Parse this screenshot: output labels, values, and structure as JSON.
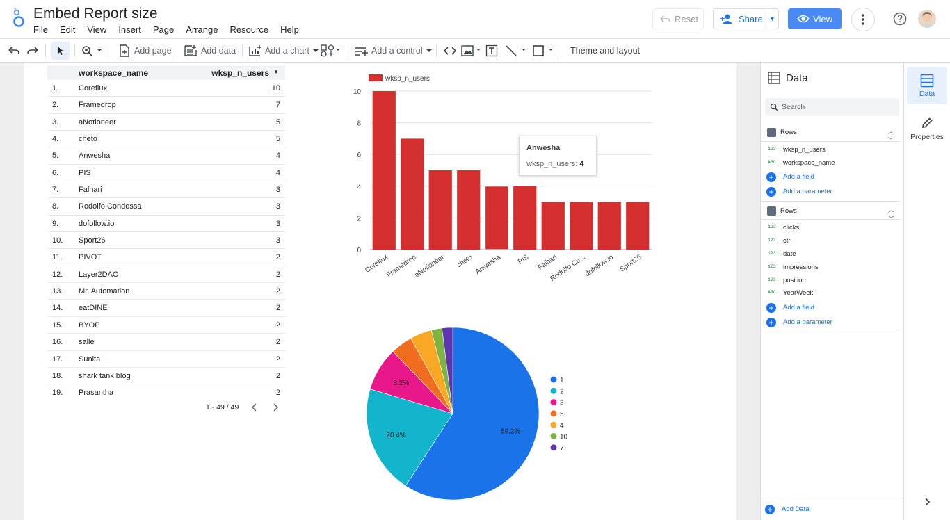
{
  "header": {
    "title": "Embed Report size",
    "menu": [
      "File",
      "Edit",
      "View",
      "Insert",
      "Page",
      "Arrange",
      "Resource",
      "Help"
    ],
    "reset_label": "Reset",
    "share_label": "Share",
    "view_label": "View"
  },
  "toolbar": {
    "add_page": "Add page",
    "add_data": "Add data",
    "add_chart": "Add a chart",
    "add_control": "Add a control",
    "theme_layout": "Theme and layout"
  },
  "table": {
    "columns": [
      "workspace_name",
      "wksp_n_users"
    ],
    "rows": [
      [
        "1.",
        "Coreflux",
        "10"
      ],
      [
        "2.",
        "Framedrop",
        "7"
      ],
      [
        "3.",
        "aNotioneer",
        "5"
      ],
      [
        "4.",
        "cheto",
        "5"
      ],
      [
        "5.",
        "Anwesha",
        "4"
      ],
      [
        "6.",
        "PIS",
        "4"
      ],
      [
        "7.",
        "Falhari",
        "3"
      ],
      [
        "8.",
        "Rodolfo Condessa",
        "3"
      ],
      [
        "9.",
        "dofollow.io",
        "3"
      ],
      [
        "10.",
        "Sport26",
        "3"
      ],
      [
        "11.",
        "PIVOT",
        "2"
      ],
      [
        "12.",
        "Layer2DAO",
        "2"
      ],
      [
        "13.",
        "Mr. Automation",
        "2"
      ],
      [
        "14.",
        "eatDINE",
        "2"
      ],
      [
        "15.",
        "BYOP",
        "2"
      ],
      [
        "16.",
        "salle",
        "2"
      ],
      [
        "17.",
        "Sunita",
        "2"
      ],
      [
        "18.",
        "shark tank blog",
        "2"
      ],
      [
        "19.",
        "Prasantha",
        "2"
      ]
    ],
    "pager": "1 - 49 / 49"
  },
  "tooltip": {
    "title": "Anwesha",
    "label": "wksp_n_users:",
    "value": "4"
  },
  "chart_data": [
    {
      "type": "bar",
      "categories": [
        "Coreflux",
        "Framedrop",
        "aNotioneer",
        "cheto",
        "Anwesha",
        "PIS",
        "Falhari",
        "Rodolfo Co...",
        "dofollow.io",
        "Sport26"
      ],
      "series": [
        {
          "name": "wksp_n_users",
          "values": [
            10,
            7,
            5,
            5,
            4,
            4,
            3,
            3,
            3,
            3
          ]
        }
      ],
      "ylim": [
        0,
        10
      ],
      "yticks": [
        0,
        2,
        4,
        6,
        8,
        10
      ],
      "color": "#d32f2f",
      "legend": "top-left",
      "grid": true
    },
    {
      "type": "pie",
      "slices": [
        {
          "label": "1",
          "value": 59.2,
          "color": "#1a73e8",
          "show_label": "59.2%"
        },
        {
          "label": "2",
          "value": 20.4,
          "color": "#12b5cb",
          "show_label": "20.4%"
        },
        {
          "label": "3",
          "value": 8.2,
          "color": "#e8178a",
          "show_label": "8.2%"
        },
        {
          "label": "5",
          "value": 4.1,
          "color": "#f06c1e",
          "show_label": ""
        },
        {
          "label": "4",
          "value": 4.1,
          "color": "#f9a825",
          "show_label": ""
        },
        {
          "label": "10",
          "value": 2.0,
          "color": "#7cb342",
          "show_label": ""
        },
        {
          "label": "7",
          "value": 2.0,
          "color": "#5e35b1",
          "show_label": ""
        }
      ],
      "legend": "right"
    }
  ],
  "data_panel": {
    "title": "Data",
    "search_placeholder": "Search",
    "sources": [
      {
        "name": "Rows",
        "fields": [
          {
            "type": "123",
            "name": "wksp_n_users"
          },
          {
            "type": "ABC",
            "name": "workspace_name"
          }
        ]
      },
      {
        "name": "Rows",
        "fields": [
          {
            "type": "123",
            "name": "clicks"
          },
          {
            "type": "123",
            "name": "ctr"
          },
          {
            "type": "123",
            "name": "date"
          },
          {
            "type": "123",
            "name": "impressions"
          },
          {
            "type": "123",
            "name": "position"
          },
          {
            "type": "ABC",
            "name": "YearWeek"
          }
        ]
      }
    ],
    "add_field": "Add a field",
    "add_parameter": "Add a parameter",
    "add_data": "Add Data"
  },
  "rail": {
    "data_label": "Data",
    "properties_label": "Properties"
  }
}
